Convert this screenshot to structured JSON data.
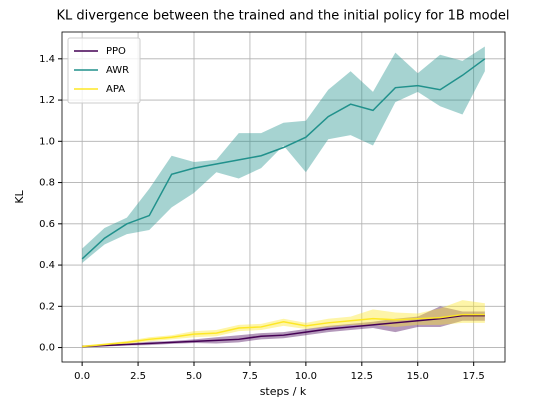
{
  "chart_data": {
    "type": "line",
    "title": "KL divergence between the trained and the initial policy for 1B model",
    "xlabel": "steps / k",
    "ylabel": "KL",
    "x": [
      0,
      1,
      2,
      3,
      4,
      5,
      6,
      7,
      8,
      9,
      10,
      11,
      12,
      13,
      14,
      15,
      16,
      17,
      18
    ],
    "series": [
      {
        "name": "PPO",
        "color": "#440154",
        "values": [
          0.005,
          0.01,
          0.015,
          0.02,
          0.025,
          0.03,
          0.035,
          0.04,
          0.055,
          0.06,
          0.075,
          0.09,
          0.1,
          0.11,
          0.12,
          0.13,
          0.14,
          0.155,
          0.155
        ],
        "lower": [
          0.0,
          0.005,
          0.01,
          0.012,
          0.018,
          0.022,
          0.02,
          0.025,
          0.04,
          0.045,
          0.06,
          0.075,
          0.085,
          0.095,
          0.075,
          0.1,
          0.1,
          0.13,
          0.13
        ],
        "upper": [
          0.01,
          0.015,
          0.02,
          0.028,
          0.032,
          0.04,
          0.05,
          0.06,
          0.07,
          0.075,
          0.09,
          0.105,
          0.115,
          0.125,
          0.14,
          0.15,
          0.2,
          0.175,
          0.175
        ]
      },
      {
        "name": "AWR",
        "color": "#21918c",
        "values": [
          0.43,
          0.53,
          0.6,
          0.64,
          0.84,
          0.87,
          0.89,
          0.91,
          0.93,
          0.97,
          1.02,
          1.12,
          1.18,
          1.15,
          1.26,
          1.27,
          1.25,
          1.32,
          1.4
        ],
        "lower": [
          0.41,
          0.5,
          0.55,
          0.57,
          0.68,
          0.75,
          0.85,
          0.82,
          0.87,
          0.98,
          0.85,
          1.01,
          1.03,
          0.98,
          1.19,
          1.24,
          1.17,
          1.13,
          1.34
        ],
        "upper": [
          0.48,
          0.58,
          0.63,
          0.77,
          0.93,
          0.9,
          0.91,
          1.04,
          1.04,
          1.09,
          1.1,
          1.25,
          1.34,
          1.24,
          1.43,
          1.33,
          1.42,
          1.39,
          1.46
        ]
      },
      {
        "name": "APA",
        "color": "#fde725",
        "values": [
          0.005,
          0.015,
          0.025,
          0.04,
          0.05,
          0.065,
          0.07,
          0.095,
          0.1,
          0.125,
          0.105,
          0.12,
          0.13,
          0.14,
          0.135,
          0.14,
          0.145,
          0.16,
          0.16
        ],
        "lower": [
          0.0,
          0.01,
          0.018,
          0.03,
          0.04,
          0.05,
          0.055,
          0.08,
          0.085,
          0.105,
          0.09,
          0.1,
          0.11,
          0.11,
          0.1,
          0.11,
          0.11,
          0.12,
          0.12
        ],
        "upper": [
          0.01,
          0.02,
          0.032,
          0.05,
          0.06,
          0.08,
          0.085,
          0.11,
          0.115,
          0.14,
          0.12,
          0.14,
          0.15,
          0.185,
          0.17,
          0.165,
          0.19,
          0.23,
          0.215
        ]
      }
    ],
    "xlim": [
      -0.9,
      18.9
    ],
    "xticks": [
      {
        "value": 0,
        "label": "0.0"
      },
      2.5,
      {
        "value": 5,
        "label": "5.0"
      },
      7.5,
      {
        "value": 10,
        "label": "10.0"
      },
      12.5,
      {
        "value": 15,
        "label": "15.0"
      },
      17.5
    ],
    "ylim": [
      -0.07,
      1.53
    ],
    "yticks": [
      {
        "value": 0,
        "label": "0.0"
      },
      0.2,
      0.4,
      0.6,
      0.8,
      {
        "value": 1,
        "label": "1.0"
      },
      1.2,
      1.4
    ],
    "grid": true,
    "legend": "upper left"
  }
}
